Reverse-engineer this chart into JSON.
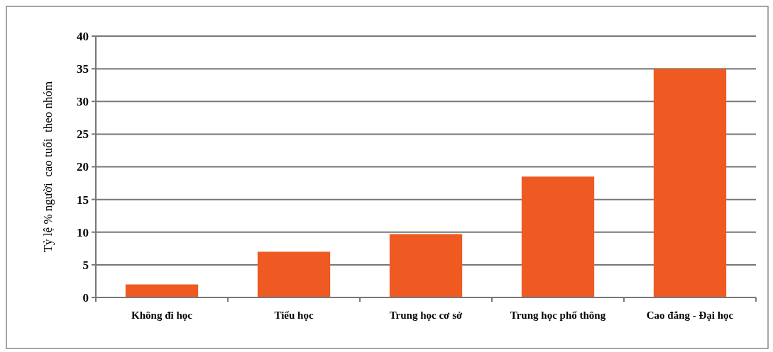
{
  "chart_data": {
    "type": "bar",
    "ylabel": "Tỷ lệ % người  cao tuổi  theo nhóm",
    "categories": [
      "Không đi học",
      "Tiểu học",
      "Trung học cơ sở",
      "Trung học phổ thông",
      "Cao đẳng - Đại học"
    ],
    "values": [
      2,
      7,
      9.7,
      18.5,
      35
    ],
    "color": "#ef5a22",
    "ylim": [
      0,
      40
    ],
    "yticks": [
      0,
      5,
      10,
      15,
      20,
      25,
      30,
      35,
      40
    ],
    "grid": "y"
  }
}
